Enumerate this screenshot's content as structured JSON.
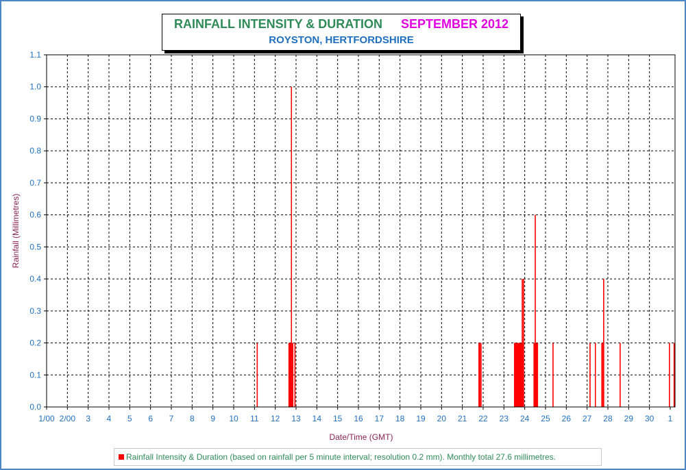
{
  "header": {
    "title": "RAINFALL INTENSITY & DURATION",
    "month": "SEPTEMBER 2012",
    "subtitle": "ROYSTON, HERTFORDSHIRE"
  },
  "legend": {
    "text": "Rainfall Intensity & Duration (based on rainfall per 5 minute interval; resolution 0.2 mm). Monthly total 27.6 millimetres."
  },
  "colors": {
    "bar": "#ff0000",
    "title": "#2e8b57",
    "month": "#e000e0",
    "subtitle": "#1f6fbf",
    "tick_labels": "#1f6fbf",
    "axis_titles": "#8b2252",
    "frame": "#4a86c8"
  },
  "chart_data": {
    "type": "bar",
    "title": "RAINFALL INTENSITY & DURATION",
    "xlabel": "Date/Time (GMT)",
    "ylabel": "Rainfall (Millimetres)",
    "ylim": [
      0,
      1.1
    ],
    "xlim": [
      "1/00",
      "1/10 08:00"
    ],
    "grid": true,
    "legend_position": "bottom",
    "x_tick_labels": [
      "1/00",
      "2/00",
      "3",
      "4",
      "5",
      "6",
      "7",
      "8",
      "9",
      "10",
      "11",
      "12",
      "13",
      "14",
      "15",
      "16",
      "17",
      "18",
      "19",
      "20",
      "21",
      "22",
      "23",
      "24",
      "25",
      "26",
      "27",
      "28",
      "29",
      "30",
      "1"
    ],
    "y_tick_labels": [
      "0.0",
      "0.1",
      "0.2",
      "0.3",
      "0.4",
      "0.5",
      "0.6",
      "0.7",
      "0.8",
      "0.9",
      "1.0",
      "1.1"
    ],
    "series": [
      {
        "name": "Rainfall Intensity & Duration",
        "x": [
          "11/03:10",
          "12/15:50",
          "12/16:50",
          "12/17:45",
          "12/18:10",
          "12/18:40",
          "12/19:25",
          "12/20:15",
          "12/22:45",
          "21/19:10",
          "21/20:10",
          "21/21:35",
          "23/12:15",
          "23/12:45",
          "23/13:15",
          "23/13:45",
          "23/14:15",
          "23/14:50",
          "23/15:20",
          "23/15:50",
          "23/16:25",
          "23/17:00",
          "23/17:35",
          "23/18:10",
          "23/18:40",
          "23/19:15",
          "23/19:50",
          "23/20:20",
          "23/21:10",
          "23/21:40",
          "23/22:40",
          "24/10:45",
          "24/11:35",
          "24/12:10",
          "24/12:45",
          "24/13:25",
          "24/14:05",
          "24/14:45",
          "25/08:40",
          "27/03:25",
          "27/09:35",
          "27/17:05",
          "27/18:25",
          "27/19:10",
          "28/14:10",
          "30/23:05",
          "1/04:30"
        ],
        "values": [
          0.2,
          0.2,
          0.2,
          0.2,
          0.2,
          1.0,
          0.2,
          0.2,
          0.2,
          0.2,
          0.2,
          0.2,
          0.2,
          0.2,
          0.2,
          0.2,
          0.2,
          0.2,
          0.2,
          0.2,
          0.2,
          0.2,
          0.2,
          0.2,
          0.2,
          0.2,
          0.2,
          0.2,
          0.4,
          0.2,
          0.4,
          0.2,
          0.2,
          0.6,
          0.2,
          0.2,
          0.2,
          0.2,
          0.2,
          0.2,
          0.2,
          0.2,
          0.2,
          0.4,
          0.2,
          0.2,
          0.2
        ]
      }
    ]
  }
}
